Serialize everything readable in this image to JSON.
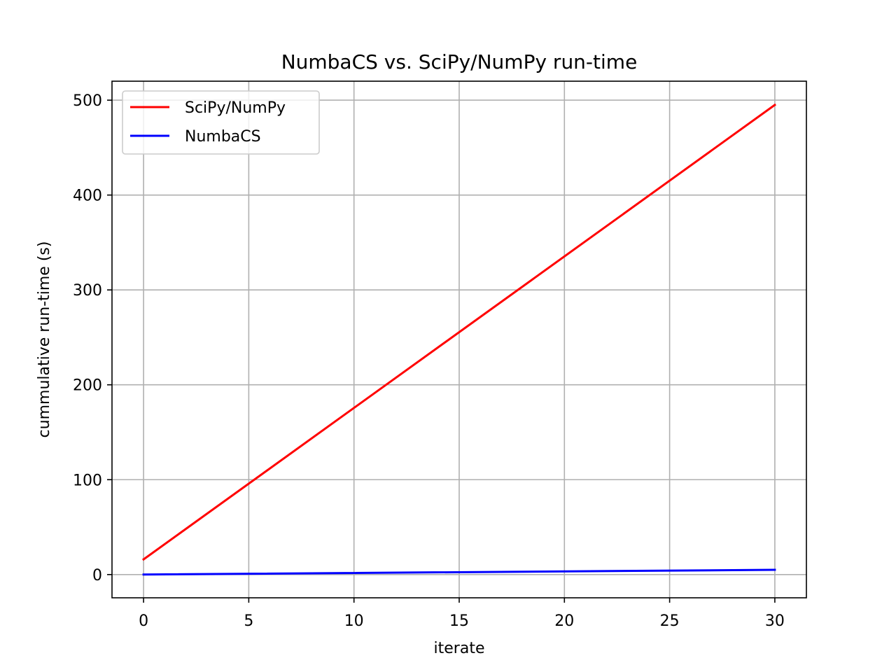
{
  "chart_data": {
    "type": "line",
    "title": "NumbaCS vs. SciPy/NumPy run-time",
    "xlabel": "iterate",
    "ylabel": "cummulative run-time (s)",
    "xlim": [
      -1.5,
      31.5
    ],
    "ylim": [
      -24.5,
      520
    ],
    "xticks": [
      0,
      5,
      10,
      15,
      20,
      25,
      30
    ],
    "yticks": [
      0,
      100,
      200,
      300,
      400,
      500
    ],
    "grid": true,
    "legend_position": "upper-left",
    "series": [
      {
        "name": "SciPy/NumPy",
        "color": "#ff0000",
        "x": [
          0,
          30
        ],
        "y": [
          16,
          495
        ]
      },
      {
        "name": "NumbaCS",
        "color": "#0000ff",
        "x": [
          0,
          30
        ],
        "y": [
          0,
          5
        ]
      }
    ]
  }
}
